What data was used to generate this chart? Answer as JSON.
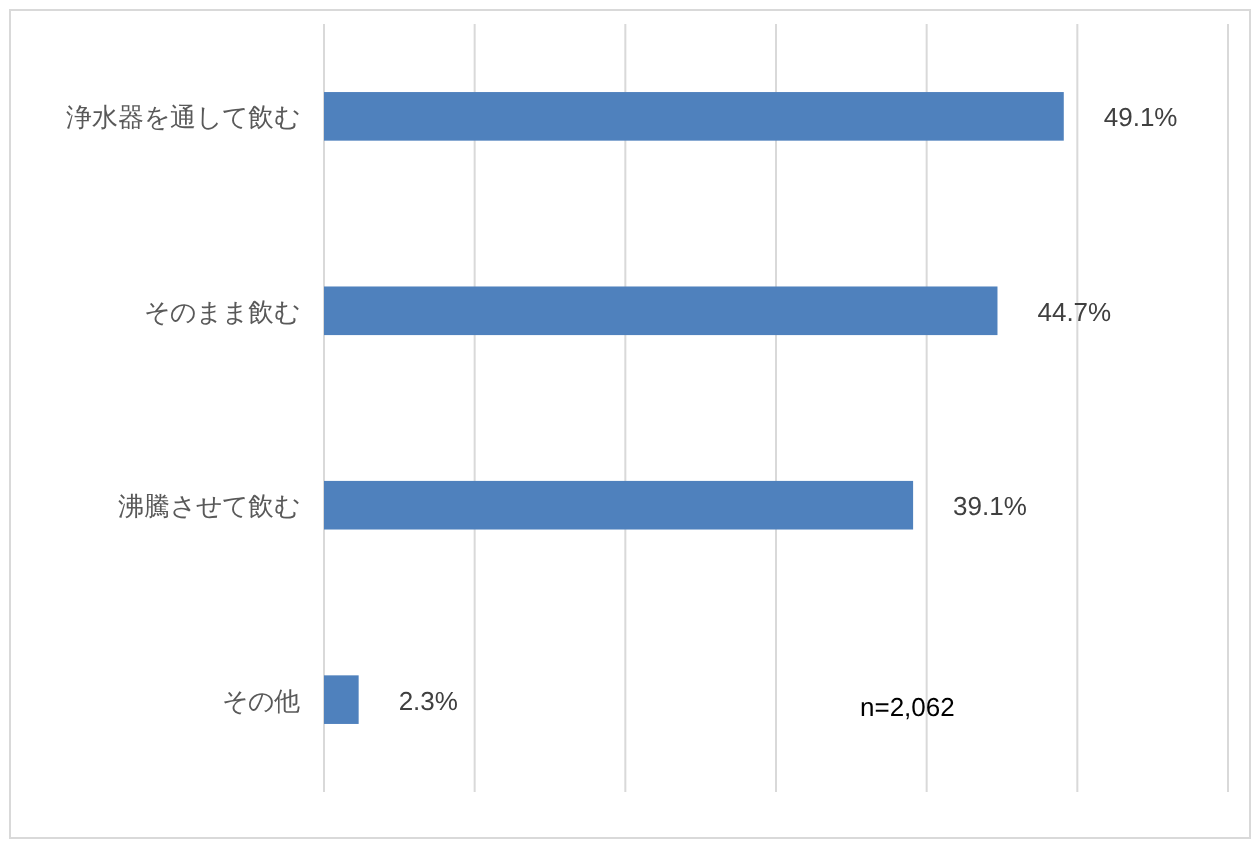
{
  "chart_data": {
    "type": "bar",
    "orientation": "horizontal",
    "categories": [
      "浄水器を通して飲む",
      "そのまま飲む",
      "沸騰させて飲む",
      "その他"
    ],
    "values": [
      49.1,
      44.7,
      39.1,
      2.3
    ],
    "color": "#4f81bd",
    "xlim": [
      0,
      60
    ],
    "xticks": [
      {
        "value": 0,
        "label": null
      },
      {
        "value": 10,
        "label": null
      },
      {
        "value": 20,
        "label": null
      },
      {
        "value": 30,
        "label": null
      },
      {
        "value": 40,
        "label": null
      },
      {
        "value": 50,
        "label": null
      },
      {
        "value": 60,
        "label": null
      }
    ],
    "grid": "x",
    "value_labels": [
      "49.1%",
      "44.7%",
      "39.1%",
      "2.3%"
    ],
    "annotations": [
      "n=2,062"
    ]
  }
}
